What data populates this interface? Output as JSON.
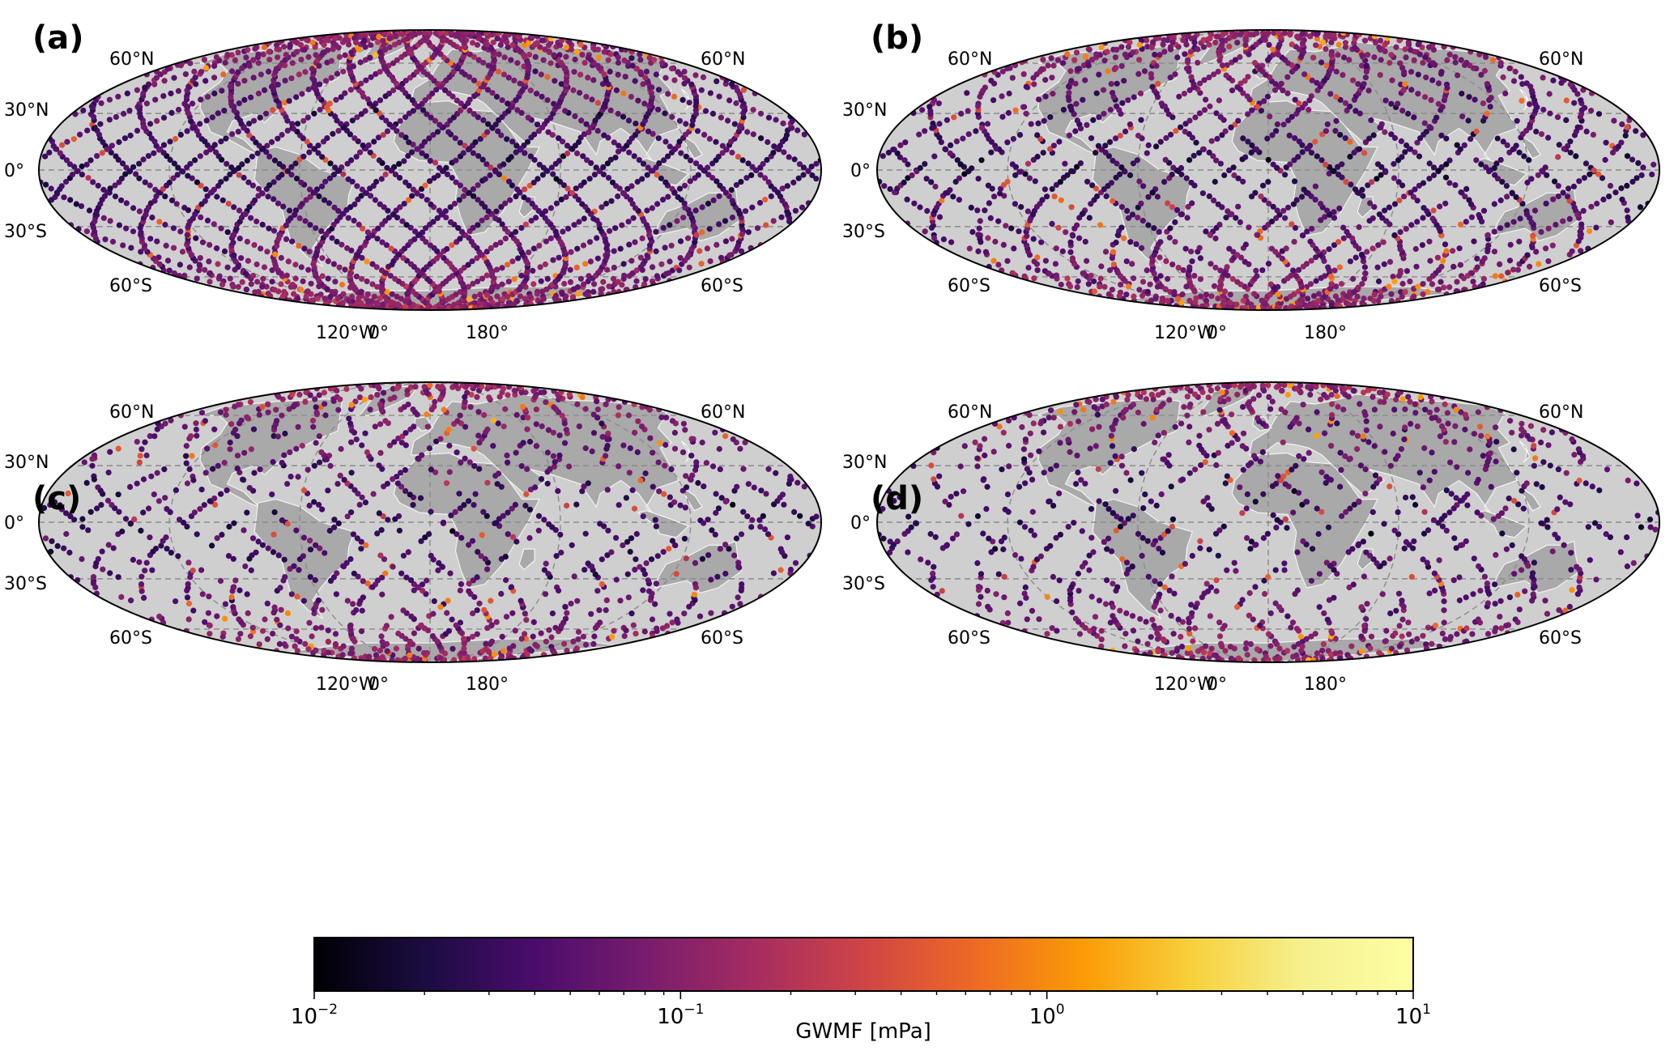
{
  "panels": [
    {
      "label": "(a)",
      "density": 1.0
    },
    {
      "label": "(b)",
      "density": 0.72
    },
    {
      "label": "(c)",
      "density": 0.48
    },
    {
      "label": "(d)",
      "density": 0.44
    }
  ],
  "lat_labels": {
    "north60": "60°N",
    "north30": "30°N",
    "equator": "0°",
    "south30": "30°S",
    "south60": "60°S"
  },
  "lon_labels": [
    "120°W",
    "0°",
    "180°"
  ],
  "colorbar": {
    "label": "GWMF [mPa]",
    "scale": "log",
    "colormap": "inferno",
    "range": [
      0.01,
      10
    ],
    "ticks": [
      {
        "base": "10",
        "exp": "−2"
      },
      {
        "base": "10",
        "exp": "−1"
      },
      {
        "base": "10",
        "exp": "0"
      },
      {
        "base": "10",
        "exp": "1"
      }
    ]
  },
  "colors": {
    "ocean": "#cfcfcf",
    "land": "#a9a9a9",
    "coast": "#ffffff",
    "grid": "#8a8a8a"
  }
}
